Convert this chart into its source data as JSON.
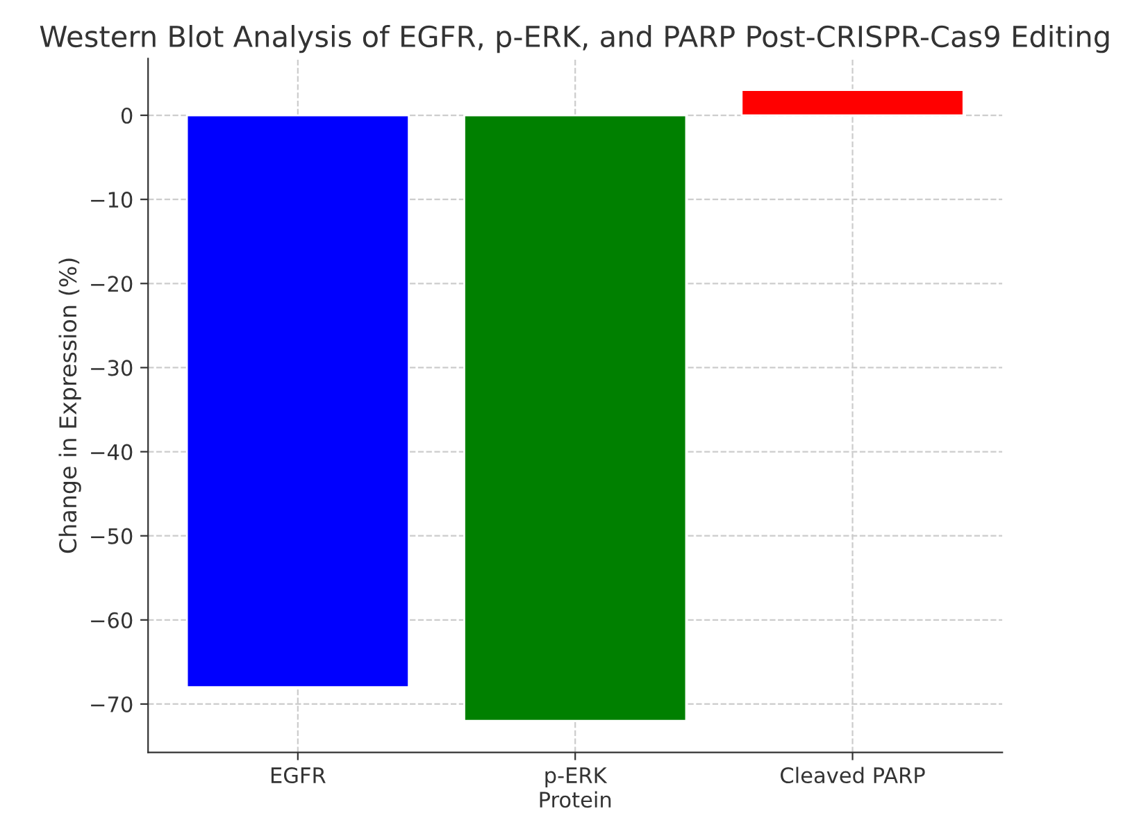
{
  "chart_data": {
    "type": "bar",
    "title": "Western Blot Analysis of EGFR, p-ERK, and PARP Post-CRISPR-Cas9 Editing",
    "xlabel": "Protein",
    "ylabel": "Change in Expression (%)",
    "categories": [
      "EGFR",
      "p-ERK",
      "Cleaved PARP"
    ],
    "values": [
      -68,
      -72,
      3
    ],
    "colors": [
      "#0000ff",
      "#008000",
      "#ff0000"
    ],
    "ylim": [
      -75.75,
      6.75
    ],
    "yticks": [
      0,
      -10,
      -20,
      -30,
      -40,
      -50,
      -60,
      -70
    ],
    "grid": true
  }
}
